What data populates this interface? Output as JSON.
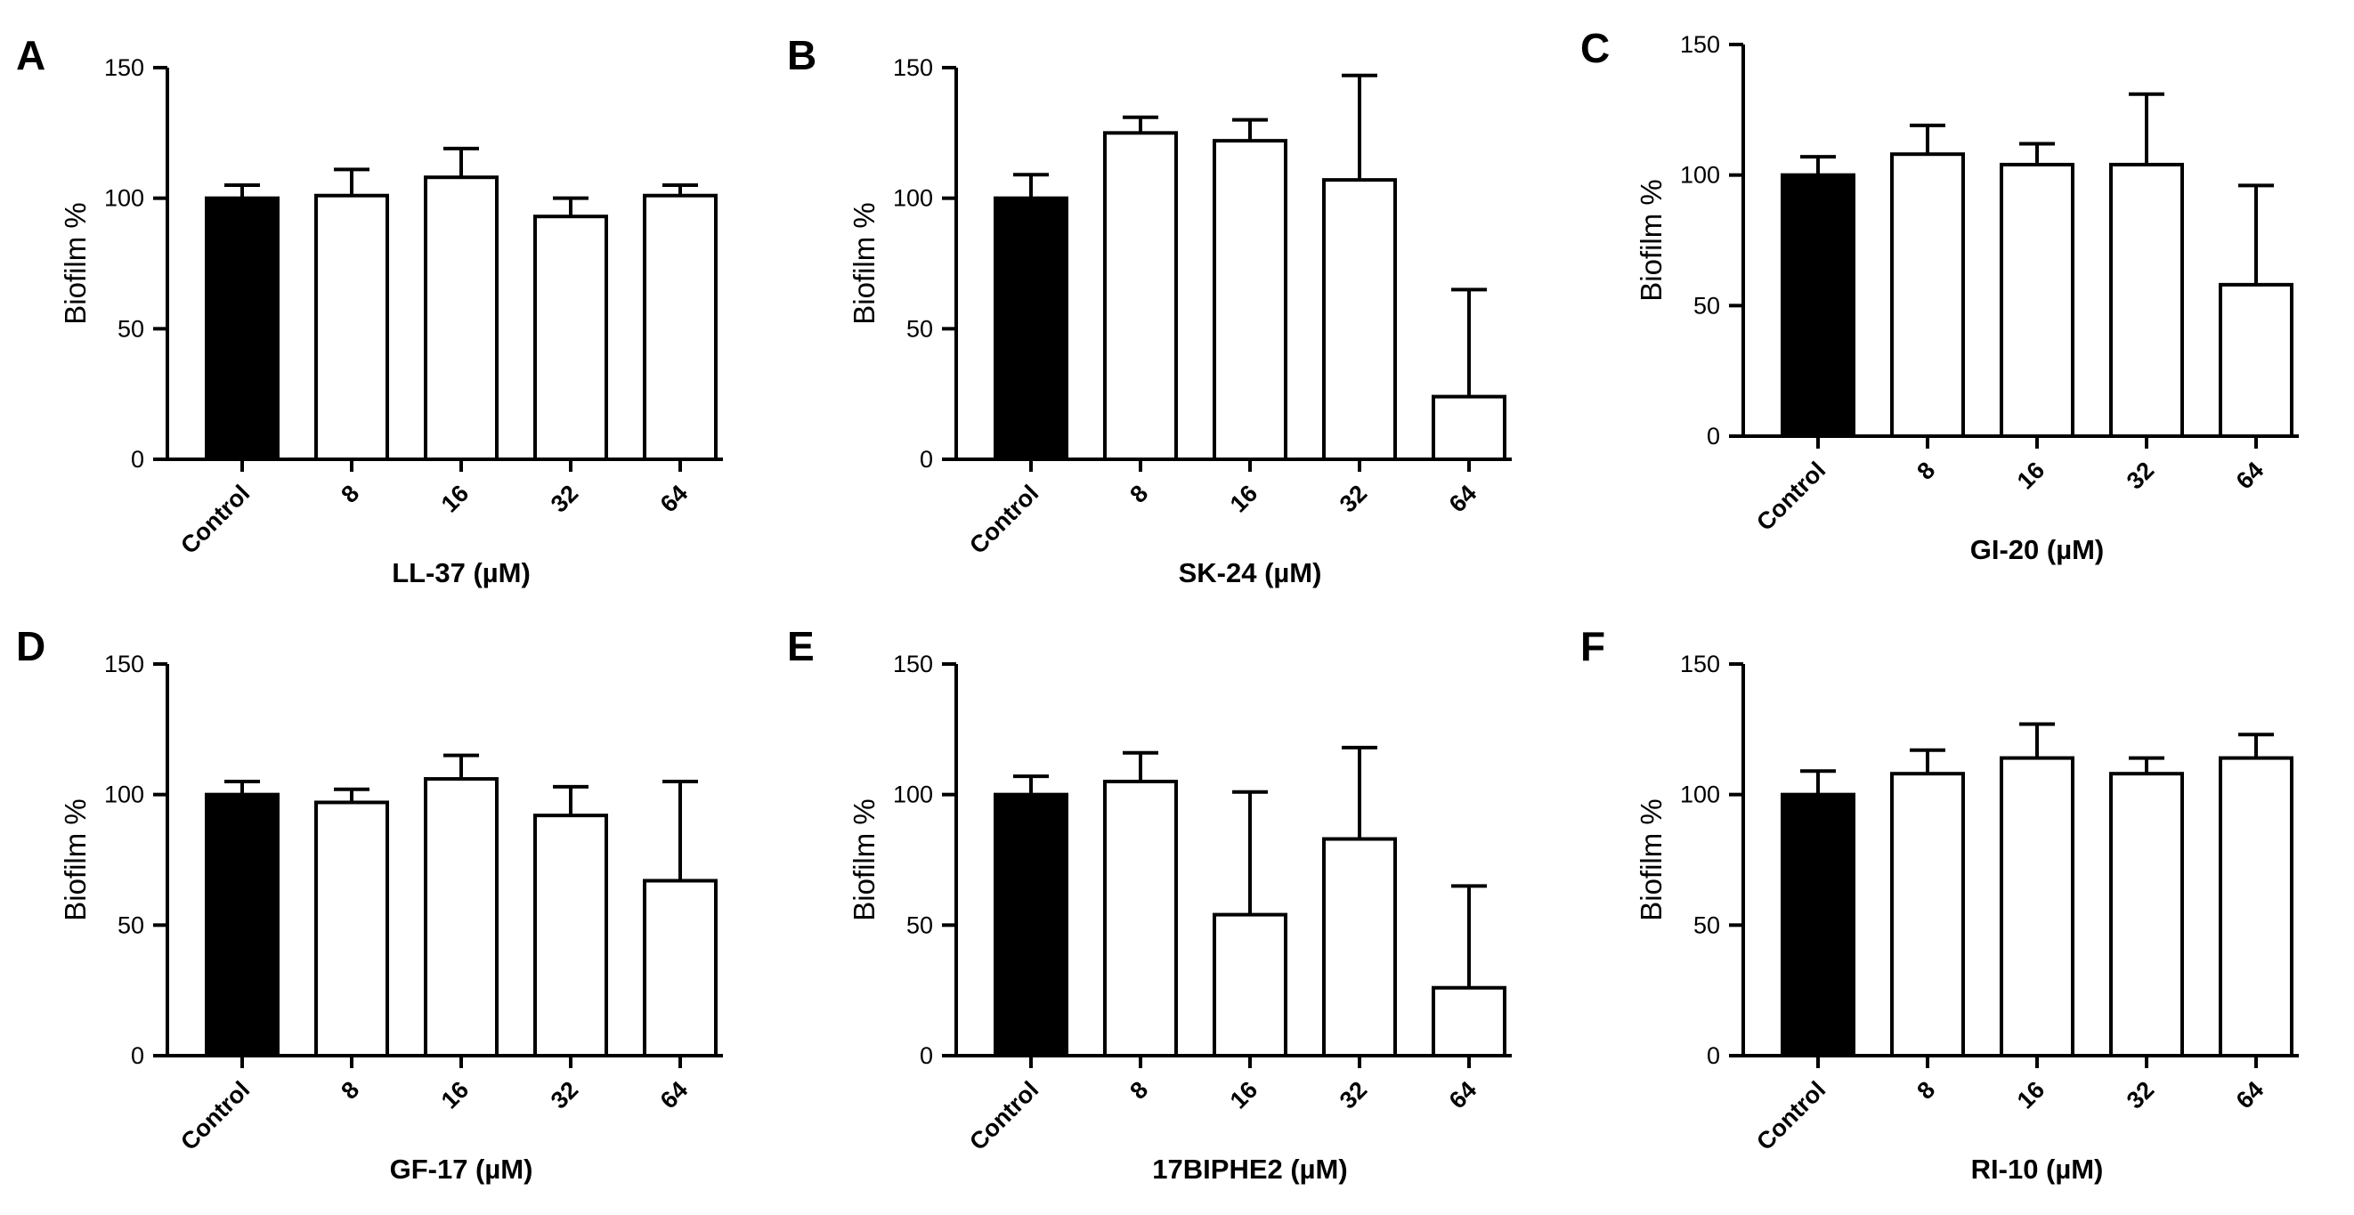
{
  "figure_title": "",
  "chart_data": [
    {
      "panel": "A",
      "type": "bar",
      "title": "",
      "ylabel": "Biofilm %",
      "xlabel": "LL-37 (µM)",
      "ylim": [
        0,
        150
      ],
      "yticks": [
        0,
        50,
        100,
        150
      ],
      "categories": [
        "Control",
        "8",
        "16",
        "32",
        "64"
      ],
      "values": [
        100,
        101,
        108,
        93,
        101
      ],
      "errors": [
        5,
        10,
        11,
        7,
        4
      ],
      "fill_colors": [
        "#000000",
        "#ffffff",
        "#ffffff",
        "#ffffff",
        "#ffffff"
      ]
    },
    {
      "panel": "B",
      "type": "bar",
      "title": "",
      "ylabel": "Biofilm %",
      "xlabel": "SK-24 (µM)",
      "ylim": [
        0,
        150
      ],
      "yticks": [
        0,
        50,
        100,
        150
      ],
      "categories": [
        "Control",
        "8",
        "16",
        "32",
        "64"
      ],
      "values": [
        100,
        125,
        122,
        107,
        24
      ],
      "errors": [
        9,
        6,
        8,
        40,
        41
      ],
      "fill_colors": [
        "#000000",
        "#ffffff",
        "#ffffff",
        "#ffffff",
        "#ffffff"
      ]
    },
    {
      "panel": "C",
      "type": "bar",
      "title": "",
      "ylabel": "Biofilm %",
      "xlabel": "GI-20 (µM)",
      "ylim": [
        0,
        150
      ],
      "yticks": [
        0,
        50,
        100,
        150
      ],
      "categories": [
        "Control",
        "8",
        "16",
        "32",
        "64"
      ],
      "values": [
        100,
        108,
        104,
        104,
        58
      ],
      "errors": [
        7,
        11,
        8,
        27,
        38
      ],
      "fill_colors": [
        "#000000",
        "#ffffff",
        "#ffffff",
        "#ffffff",
        "#ffffff"
      ]
    },
    {
      "panel": "D",
      "type": "bar",
      "title": "",
      "ylabel": "Biofilm %",
      "xlabel": "GF-17 (µM)",
      "ylim": [
        0,
        150
      ],
      "yticks": [
        0,
        50,
        100,
        150
      ],
      "categories": [
        "Control",
        "8",
        "16",
        "32",
        "64"
      ],
      "values": [
        100,
        97,
        106,
        92,
        67
      ],
      "errors": [
        5,
        5,
        9,
        11,
        38
      ],
      "fill_colors": [
        "#000000",
        "#ffffff",
        "#ffffff",
        "#ffffff",
        "#ffffff"
      ]
    },
    {
      "panel": "E",
      "type": "bar",
      "title": "",
      "ylabel": "Biofilm %",
      "xlabel": "17BIPHE2 (µM)",
      "ylim": [
        0,
        150
      ],
      "yticks": [
        0,
        50,
        100,
        150
      ],
      "categories": [
        "Control",
        "8",
        "16",
        "32",
        "64"
      ],
      "values": [
        100,
        105,
        54,
        83,
        26
      ],
      "errors": [
        7,
        11,
        47,
        35,
        39
      ],
      "fill_colors": [
        "#000000",
        "#ffffff",
        "#ffffff",
        "#ffffff",
        "#ffffff"
      ]
    },
    {
      "panel": "F",
      "type": "bar",
      "title": "",
      "ylabel": "Biofilm %",
      "xlabel": "RI-10 (µM)",
      "ylim": [
        0,
        150
      ],
      "yticks": [
        0,
        50,
        100,
        150
      ],
      "categories": [
        "Control",
        "8",
        "16",
        "32",
        "64"
      ],
      "values": [
        100,
        108,
        114,
        108,
        114
      ],
      "errors": [
        9,
        9,
        13,
        6,
        9
      ],
      "fill_colors": [
        "#000000",
        "#ffffff",
        "#ffffff",
        "#ffffff",
        "#ffffff"
      ]
    }
  ],
  "style": {
    "axis_color": "#000000",
    "bar_stroke": "#000000",
    "background": "#ffffff"
  }
}
